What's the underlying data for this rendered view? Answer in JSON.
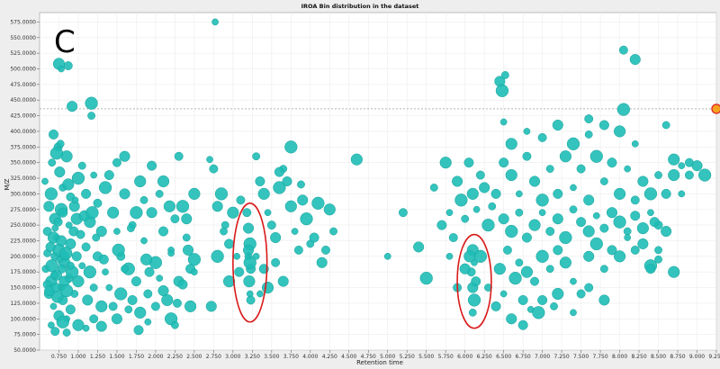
{
  "panel_label": "C",
  "colors": {
    "point_fill": "#1fbdb6",
    "point_stroke": "#17a39c",
    "highlight_fill": "#f4a21d",
    "highlight_stroke": "#e0302a",
    "ellipse_stroke": "#d91a1a",
    "guide_line": "#888888",
    "plot_bg": "#ffffff",
    "page_bg": "#eeeeee"
  },
  "chart_data": {
    "type": "scatter",
    "title": "IROA Bin distribution in the dataset",
    "xlabel": "Retention time",
    "ylabel": "M/Z",
    "xlim": [
      0.5,
      9.25
    ],
    "ylim": [
      50,
      590
    ],
    "x_ticks": [
      "0.750",
      "1.000",
      "1.250",
      "1.500",
      "1.750",
      "2.000",
      "2.250",
      "2.500",
      "2.750",
      "3.000",
      "3.250",
      "3.500",
      "3.750",
      "4.000",
      "4.250",
      "4.500",
      "4.750",
      "5.000",
      "5.250",
      "5.500",
      "5.750",
      "6.000",
      "6.250",
      "6.500",
      "6.750",
      "7.000",
      "7.250",
      "7.500",
      "7.750",
      "8.000",
      "8.250",
      "8.500",
      "8.750",
      "9.000",
      "9.250"
    ],
    "y_ticks": [
      "50.0000",
      "75.0000",
      "100.0000",
      "125.0000",
      "150.0000",
      "175.0000",
      "200.0000",
      "225.0000",
      "250.0000",
      "275.0000",
      "300.0000",
      "325.0000",
      "350.0000",
      "375.0000",
      "400.0000",
      "425.0000",
      "450.0000",
      "475.0000",
      "500.0000",
      "525.0000",
      "550.0000",
      "575.0000"
    ],
    "reference_line_y": 436,
    "highlight_point": [
      9.25,
      436
    ],
    "ellipses": [
      {
        "cx": 3.22,
        "cy": 190,
        "rx": 0.22,
        "ry": 95
      },
      {
        "cx": 6.12,
        "cy": 160,
        "rx": 0.22,
        "ry": 75
      }
    ],
    "points": [
      [
        0.57,
        320
      ],
      [
        0.6,
        240
      ],
      [
        0.62,
        280
      ],
      [
        0.65,
        300
      ],
      [
        0.66,
        350
      ],
      [
        0.68,
        395
      ],
      [
        0.7,
        260
      ],
      [
        0.72,
        230
      ],
      [
        0.74,
        375
      ],
      [
        0.76,
        335
      ],
      [
        0.78,
        275
      ],
      [
        0.8,
        310
      ],
      [
        0.82,
        200
      ],
      [
        0.85,
        360
      ],
      [
        0.88,
        250
      ],
      [
        0.9,
        295
      ],
      [
        0.95,
        280
      ],
      [
        1.0,
        325
      ],
      [
        1.05,
        345
      ],
      [
        1.1,
        300
      ],
      [
        1.15,
        255
      ],
      [
        1.2,
        330
      ],
      [
        1.25,
        285
      ],
      [
        1.3,
        240
      ],
      [
        1.35,
        310
      ],
      [
        0.58,
        180
      ],
      [
        0.62,
        140
      ],
      [
        0.65,
        160
      ],
      [
        0.68,
        120
      ],
      [
        0.7,
        200
      ],
      [
        0.72,
        170
      ],
      [
        0.75,
        210
      ],
      [
        0.78,
        150
      ],
      [
        0.8,
        130
      ],
      [
        0.82,
        190
      ],
      [
        0.85,
        100
      ],
      [
        0.88,
        165
      ],
      [
        0.9,
        220
      ],
      [
        0.92,
        175
      ],
      [
        0.95,
        140
      ],
      [
        0.98,
        200
      ],
      [
        1.0,
        160
      ],
      [
        1.05,
        185
      ],
      [
        1.1,
        215
      ],
      [
        1.12,
        130
      ],
      [
        1.15,
        175
      ],
      [
        1.2,
        150
      ],
      [
        1.25,
        200
      ],
      [
        1.3,
        120
      ],
      [
        1.35,
        175
      ],
      [
        0.6,
        155
      ],
      [
        0.63,
        145
      ],
      [
        0.66,
        185
      ],
      [
        0.69,
        170
      ],
      [
        0.71,
        150
      ],
      [
        0.73,
        135
      ],
      [
        0.76,
        195
      ],
      [
        0.79,
        180
      ],
      [
        0.82,
        160
      ],
      [
        0.85,
        145
      ],
      [
        0.6,
        205
      ],
      [
        0.64,
        215
      ],
      [
        0.68,
        230
      ],
      [
        0.7,
        245
      ],
      [
        0.74,
        255
      ],
      [
        0.78,
        225
      ],
      [
        0.84,
        205
      ],
      [
        0.9,
        185
      ],
      [
        0.94,
        240
      ],
      [
        0.98,
        260
      ],
      [
        0.65,
        90
      ],
      [
        0.7,
        80
      ],
      [
        0.75,
        105
      ],
      [
        0.8,
        95
      ],
      [
        0.85,
        78
      ],
      [
        0.9,
        115
      ],
      [
        1.0,
        90
      ],
      [
        1.1,
        85
      ],
      [
        1.2,
        100
      ],
      [
        1.3,
        88
      ],
      [
        0.72,
        365
      ],
      [
        0.77,
        380
      ],
      [
        0.8,
        270
      ],
      [
        0.87,
        315
      ],
      [
        0.96,
        290
      ],
      [
        1.03,
        235
      ],
      [
        1.08,
        265
      ],
      [
        1.18,
        270
      ],
      [
        1.23,
        230
      ],
      [
        1.33,
        195
      ],
      [
        0.75,
        508
      ],
      [
        0.78,
        500
      ],
      [
        0.87,
        505
      ],
      [
        0.92,
        440
      ],
      [
        1.17,
        445
      ],
      [
        1.17,
        425
      ],
      [
        1.4,
        330
      ],
      [
        1.45,
        270
      ],
      [
        1.5,
        240
      ],
      [
        1.55,
        200
      ],
      [
        1.6,
        300
      ],
      [
        1.65,
        180
      ],
      [
        1.7,
        250
      ],
      [
        1.75,
        160
      ],
      [
        1.8,
        320
      ],
      [
        1.85,
        225
      ],
      [
        1.9,
        140
      ],
      [
        1.95,
        270
      ],
      [
        2.0,
        190
      ],
      [
        2.05,
        300
      ],
      [
        2.1,
        240
      ],
      [
        2.15,
        130
      ],
      [
        2.2,
        210
      ],
      [
        2.25,
        260
      ],
      [
        2.3,
        160
      ],
      [
        2.35,
        280
      ],
      [
        2.4,
        230
      ],
      [
        2.45,
        180
      ],
      [
        2.5,
        300
      ],
      [
        1.4,
        150
      ],
      [
        1.45,
        120
      ],
      [
        1.5,
        100
      ],
      [
        1.55,
        140
      ],
      [
        1.6,
        180
      ],
      [
        1.7,
        130
      ],
      [
        1.8,
        110
      ],
      [
        1.9,
        95
      ],
      [
        2.0,
        120
      ],
      [
        2.1,
        145
      ],
      [
        2.2,
        100
      ],
      [
        2.25,
        90
      ],
      [
        2.35,
        155
      ],
      [
        2.45,
        120
      ],
      [
        2.5,
        175
      ],
      [
        1.5,
        350
      ],
      [
        1.6,
        360
      ],
      [
        1.75,
        270
      ],
      [
        1.85,
        290
      ],
      [
        1.95,
        345
      ],
      [
        2.1,
        320
      ],
      [
        2.2,
        205
      ],
      [
        2.3,
        360
      ],
      [
        2.4,
        260
      ],
      [
        2.5,
        195
      ],
      [
        1.65,
        115
      ],
      [
        1.78,
        82
      ],
      [
        1.88,
        195
      ],
      [
        2.05,
        165
      ],
      [
        2.28,
        125
      ],
      [
        2.42,
        210
      ],
      [
        1.52,
        210
      ],
      [
        1.68,
        245
      ],
      [
        1.92,
        175
      ],
      [
        2.18,
        280
      ],
      [
        2.7,
        355
      ],
      [
        2.75,
        340
      ],
      [
        2.8,
        280
      ],
      [
        2.85,
        300
      ],
      [
        2.9,
        250
      ],
      [
        2.95,
        220
      ],
      [
        3.0,
        270
      ],
      [
        3.05,
        200
      ],
      [
        3.1,
        290
      ],
      [
        2.72,
        120
      ],
      [
        2.8,
        200
      ],
      [
        2.88,
        240
      ],
      [
        3.08,
        175
      ],
      [
        2.95,
        160
      ],
      [
        2.77,
        575
      ],
      [
        3.18,
        270
      ],
      [
        3.2,
        245
      ],
      [
        3.22,
        220
      ],
      [
        3.2,
        200
      ],
      [
        3.23,
        180
      ],
      [
        3.21,
        160
      ],
      [
        3.22,
        140
      ],
      [
        3.23,
        130
      ],
      [
        3.2,
        210
      ],
      [
        3.22,
        190
      ],
      [
        3.3,
        360
      ],
      [
        3.35,
        320
      ],
      [
        3.4,
        300
      ],
      [
        3.45,
        270
      ],
      [
        3.5,
        250
      ],
      [
        3.55,
        230
      ],
      [
        3.6,
        310
      ],
      [
        3.65,
        340
      ],
      [
        3.7,
        320
      ],
      [
        3.75,
        280
      ],
      [
        3.8,
        240
      ],
      [
        3.85,
        210
      ],
      [
        3.9,
        290
      ],
      [
        3.95,
        260
      ],
      [
        4.0,
        220
      ],
      [
        3.4,
        180
      ],
      [
        3.45,
        150
      ],
      [
        3.35,
        140
      ],
      [
        3.55,
        190
      ],
      [
        3.65,
        160
      ],
      [
        3.75,
        375
      ],
      [
        3.88,
        315
      ],
      [
        4.05,
        230
      ],
      [
        4.25,
        275
      ],
      [
        3.3,
        200
      ],
      [
        4.2,
        210
      ],
      [
        4.15,
        190
      ],
      [
        4.1,
        285
      ],
      [
        4.3,
        240
      ],
      [
        3.6,
        335
      ],
      [
        4.6,
        355
      ],
      [
        5.0,
        200
      ],
      [
        5.2,
        270
      ],
      [
        5.4,
        215
      ],
      [
        5.5,
        165
      ],
      [
        5.6,
        310
      ],
      [
        5.7,
        250
      ],
      [
        5.75,
        350
      ],
      [
        5.8,
        270
      ],
      [
        5.85,
        230
      ],
      [
        5.9,
        320
      ],
      [
        5.95,
        290
      ],
      [
        6.0,
        260
      ],
      [
        6.05,
        350
      ],
      [
        6.1,
        300
      ],
      [
        6.15,
        275
      ],
      [
        6.2,
        330
      ],
      [
        6.25,
        310
      ],
      [
        6.3,
        250
      ],
      [
        6.35,
        280
      ],
      [
        6.4,
        300
      ],
      [
        6.1,
        210
      ],
      [
        6.12,
        190
      ],
      [
        6.08,
        175
      ],
      [
        6.1,
        150
      ],
      [
        6.12,
        130
      ],
      [
        6.1,
        110
      ],
      [
        6.14,
        160
      ],
      [
        6.06,
        200
      ],
      [
        5.8,
        200
      ],
      [
        5.9,
        150
      ],
      [
        6.0,
        180
      ],
      [
        6.2,
        200
      ],
      [
        6.3,
        150
      ],
      [
        6.4,
        120
      ],
      [
        6.45,
        180
      ],
      [
        6.5,
        140
      ],
      [
        6.55,
        210
      ],
      [
        6.6,
        100
      ],
      [
        6.65,
        165
      ],
      [
        6.7,
        190
      ],
      [
        6.75,
        130
      ],
      [
        6.8,
        175
      ],
      [
        6.85,
        115
      ],
      [
        6.9,
        160
      ],
      [
        6.45,
        480
      ],
      [
        6.48,
        465
      ],
      [
        6.52,
        490
      ],
      [
        6.5,
        350
      ],
      [
        6.6,
        330
      ],
      [
        6.7,
        300
      ],
      [
        6.8,
        360
      ],
      [
        6.9,
        320
      ],
      [
        7.0,
        290
      ],
      [
        7.1,
        340
      ],
      [
        7.2,
        300
      ],
      [
        7.3,
        360
      ],
      [
        7.4,
        310
      ],
      [
        7.5,
        340
      ],
      [
        7.6,
        290
      ],
      [
        7.7,
        360
      ],
      [
        7.8,
        320
      ],
      [
        7.9,
        350
      ],
      [
        8.0,
        300
      ],
      [
        8.1,
        340
      ],
      [
        8.2,
        290
      ],
      [
        8.3,
        320
      ],
      [
        8.4,
        300
      ],
      [
        8.5,
        330
      ],
      [
        8.6,
        300
      ],
      [
        8.7,
        355
      ],
      [
        8.8,
        345
      ],
      [
        8.9,
        350
      ],
      [
        6.5,
        260
      ],
      [
        6.6,
        240
      ],
      [
        6.7,
        270
      ],
      [
        6.8,
        230
      ],
      [
        6.9,
        250
      ],
      [
        7.0,
        270
      ],
      [
        7.1,
        240
      ],
      [
        7.2,
        260
      ],
      [
        7.3,
        230
      ],
      [
        7.4,
        275
      ],
      [
        7.5,
        255
      ],
      [
        7.6,
        240
      ],
      [
        7.7,
        265
      ],
      [
        7.8,
        245
      ],
      [
        7.9,
        270
      ],
      [
        8.0,
        255
      ],
      [
        8.1,
        240
      ],
      [
        8.2,
        265
      ],
      [
        8.3,
        245
      ],
      [
        8.4,
        270
      ],
      [
        8.5,
        250
      ],
      [
        8.6,
        240
      ],
      [
        7.0,
        200
      ],
      [
        7.1,
        180
      ],
      [
        7.2,
        210
      ],
      [
        7.3,
        190
      ],
      [
        7.4,
        160
      ],
      [
        7.5,
        140
      ],
      [
        7.6,
        200
      ],
      [
        7.7,
        220
      ],
      [
        7.8,
        180
      ],
      [
        7.9,
        210
      ],
      [
        8.0,
        200
      ],
      [
        8.1,
        230
      ],
      [
        8.2,
        210
      ],
      [
        8.3,
        220
      ],
      [
        8.4,
        185
      ],
      [
        8.5,
        195
      ],
      [
        7.0,
        130
      ],
      [
        7.2,
        140
      ],
      [
        7.4,
        110
      ],
      [
        7.6,
        150
      ],
      [
        7.8,
        130
      ],
      [
        6.95,
        110
      ],
      [
        7.15,
        120
      ],
      [
        6.75,
        90
      ],
      [
        6.6,
        380
      ],
      [
        6.8,
        400
      ],
      [
        7.0,
        390
      ],
      [
        7.2,
        410
      ],
      [
        7.4,
        380
      ],
      [
        7.6,
        395
      ],
      [
        7.8,
        410
      ],
      [
        8.0,
        400
      ],
      [
        8.2,
        380
      ],
      [
        8.05,
        530
      ],
      [
        8.2,
        515
      ],
      [
        8.05,
        435
      ],
      [
        8.6,
        410
      ],
      [
        8.45,
        255
      ],
      [
        8.7,
        330
      ],
      [
        8.8,
        300
      ],
      [
        8.9,
        330
      ],
      [
        9.0,
        345
      ],
      [
        9.1,
        330
      ],
      [
        8.5,
        210
      ],
      [
        8.4,
        180
      ],
      [
        8.7,
        175
      ],
      [
        6.5,
        415
      ],
      [
        7.6,
        420
      ]
    ]
  }
}
